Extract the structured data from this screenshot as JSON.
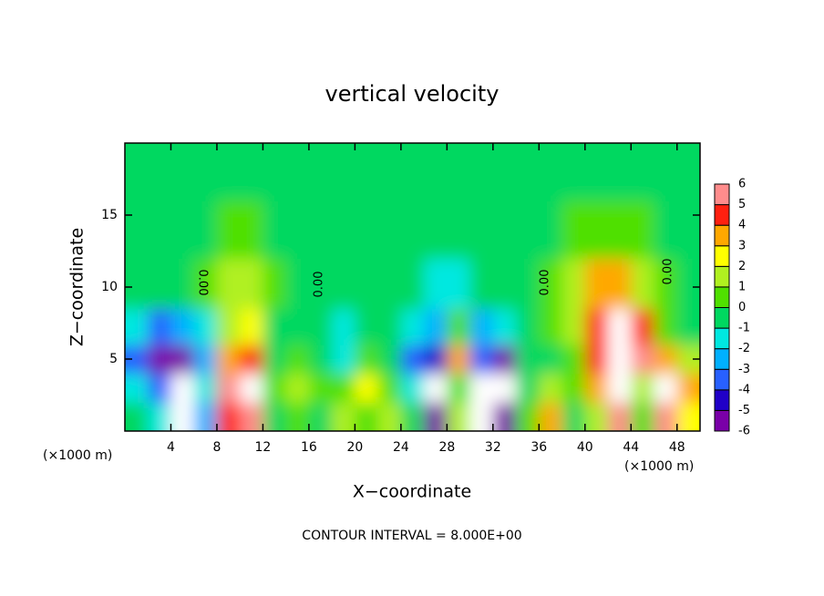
{
  "chart_data": {
    "type": "contour",
    "title": "vertical velocity",
    "x_label": "X−coordinate",
    "y_label": "Z−coordinate",
    "x_unit_label": "(×1000 m)",
    "contour_label": "0.00",
    "annotation": "CONTOUR INTERVAL = 8.000E+00",
    "xlim": [
      0,
      50
    ],
    "xticks": [
      4,
      8,
      12,
      16,
      20,
      24,
      28,
      32,
      36,
      40,
      44,
      48
    ],
    "ylim": [
      0,
      20
    ],
    "yticks": [
      5,
      10,
      15
    ],
    "x": [
      1,
      3,
      5,
      7,
      9,
      11,
      13,
      15,
      17,
      19,
      21,
      23,
      25,
      27,
      29,
      31,
      33,
      35,
      37,
      39,
      41,
      43,
      45,
      47,
      49
    ],
    "y": [
      1,
      3,
      5,
      7,
      10,
      14,
      18
    ],
    "z": [
      [
        0,
        -1,
        -7,
        -2,
        5,
        6,
        0,
        1,
        0,
        2,
        1,
        2,
        0,
        -6,
        2,
        -7,
        -5,
        1,
        4,
        0,
        2,
        6,
        1,
        6,
        3
      ],
      [
        -1,
        -3,
        -7,
        -1,
        6,
        7,
        1,
        2,
        1,
        1,
        3,
        1,
        -1,
        -7,
        1,
        -7,
        -7,
        0,
        2,
        1,
        4,
        7,
        2,
        7,
        4
      ],
      [
        -3,
        -5,
        -5,
        -2,
        4,
        5,
        0,
        1,
        0,
        -1,
        1,
        0,
        -3,
        -4,
        4,
        -3,
        -6,
        0,
        0,
        1,
        5,
        7,
        6,
        4,
        2
      ],
      [
        -1,
        -3,
        -2,
        -1,
        2,
        3,
        0,
        0,
        0,
        -1,
        0,
        0,
        -1,
        -2,
        1,
        -2,
        -1,
        0,
        1,
        2,
        5,
        8,
        5,
        1,
        0
      ],
      [
        0,
        0,
        0,
        1,
        2,
        2,
        1,
        0,
        0,
        0,
        0,
        0,
        0,
        -1,
        -1,
        0,
        0,
        0,
        1,
        2,
        4,
        4,
        2,
        1,
        0
      ],
      [
        0,
        0,
        0,
        0,
        1,
        1,
        0,
        0,
        0,
        0,
        0,
        0,
        0,
        0,
        0,
        0,
        0,
        0,
        0,
        1,
        1,
        1,
        1,
        0,
        0
      ],
      [
        0,
        0,
        0,
        0,
        0,
        0,
        0,
        0,
        0,
        0,
        0,
        0,
        0,
        0,
        0,
        0,
        0,
        0,
        0,
        0,
        0,
        0,
        0,
        0,
        0
      ]
    ],
    "levels": [
      -6,
      -5,
      -4,
      -3,
      -2,
      -1,
      0,
      1,
      2,
      3,
      4,
      5,
      6
    ],
    "colors": [
      "#7a00a8",
      "#2000c8",
      "#2860ff",
      "#00b0ff",
      "#00e8e0",
      "#00d860",
      "#50e000",
      "#b0f020",
      "#ffff00",
      "#ffa800",
      "#ff2010",
      "#ff8c8c"
    ],
    "over_color": "#ffffff"
  }
}
